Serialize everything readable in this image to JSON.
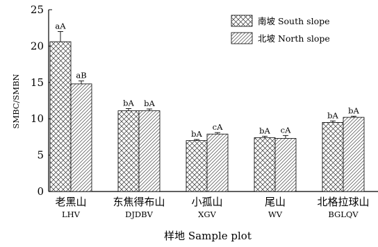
{
  "chart_data": {
    "type": "bar",
    "xlabel": "样地 Sample plot",
    "ylabel": "SMBC/SMBN",
    "ylim": [
      0,
      25
    ],
    "yticks": [
      0,
      5,
      10,
      15,
      20,
      25
    ],
    "grid": false,
    "legend_position": "top-right",
    "categories": [
      {
        "cn": "老黑山",
        "en": "LHV"
      },
      {
        "cn": "东焦得布山",
        "en": "DJDBV"
      },
      {
        "cn": "小孤山",
        "en": "XGV"
      },
      {
        "cn": "尾山",
        "en": "WV"
      },
      {
        "cn": "北格拉球山",
        "en": "BGLQV"
      }
    ],
    "series": [
      {
        "name": "南坡 South slope",
        "pattern": "crosshatch",
        "values": [
          20.6,
          11.1,
          7.0,
          7.4,
          9.5
        ],
        "errors": [
          1.4,
          0.3,
          0.15,
          0.2,
          0.2
        ],
        "labels": [
          "aA",
          "bA",
          "bA",
          "bA",
          "bA"
        ]
      },
      {
        "name": "北坡 North slope",
        "pattern": "diagonal",
        "values": [
          14.8,
          11.1,
          7.9,
          7.3,
          10.2
        ],
        "errors": [
          0.4,
          0.25,
          0.2,
          0.4,
          0.15
        ],
        "labels": [
          "aB",
          "bA",
          "cA",
          "cA",
          "bA"
        ]
      }
    ]
  }
}
